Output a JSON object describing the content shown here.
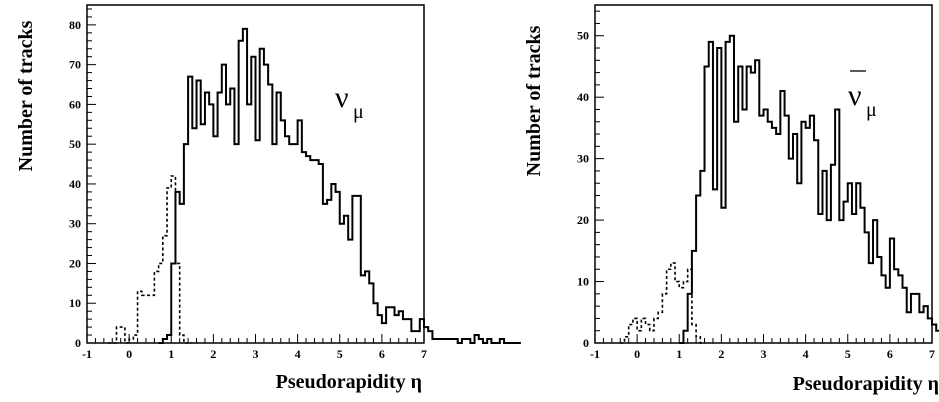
{
  "chart_data": [
    {
      "type": "histogram",
      "panel": "left",
      "annotation": "ν",
      "annotation_sub": "μ",
      "annotation_bar": false,
      "xlabel": "Pseudorapidity η",
      "ylabel": "Number of tracks",
      "xlim": [
        -1,
        7
      ],
      "ylim": [
        0,
        85
      ],
      "xticks": [
        "-1",
        "0",
        "1",
        "2",
        "3",
        "4",
        "5",
        "6",
        "7"
      ],
      "yticks": [
        "0",
        "10",
        "20",
        "30",
        "40",
        "50",
        "60",
        "70",
        "80"
      ],
      "ytick_values": [
        0,
        10,
        20,
        30,
        40,
        50,
        60,
        70,
        80
      ],
      "bin_width": 0.1,
      "series": [
        {
          "style": "solid",
          "x_start": 0.7,
          "values": [
            0,
            1,
            2,
            20,
            38,
            35,
            50,
            67,
            54,
            66,
            55,
            63,
            60,
            52,
            63,
            70,
            60,
            64,
            50,
            76,
            79,
            60,
            72,
            51,
            74,
            70,
            65,
            50,
            63,
            56,
            52,
            50,
            50,
            56,
            48,
            47,
            46,
            46,
            45,
            35,
            36,
            40,
            38,
            30,
            32,
            26,
            37,
            37,
            17,
            18,
            15,
            10,
            7,
            5,
            9,
            9,
            7,
            8,
            6,
            6,
            3,
            3,
            6,
            4,
            3,
            1,
            1,
            1,
            1,
            1,
            1,
            0,
            1,
            1,
            0,
            2,
            1,
            0,
            1,
            0,
            0,
            1,
            0,
            0,
            0,
            0
          ]
        },
        {
          "style": "dashed",
          "x_start": -0.5,
          "values": [
            0,
            0,
            4,
            4,
            0,
            1,
            2,
            13,
            12,
            12,
            12,
            18,
            20,
            27,
            39,
            42,
            20,
            2,
            0,
            0
          ]
        }
      ]
    },
    {
      "type": "histogram",
      "panel": "right",
      "annotation": "ν",
      "annotation_sub": "μ",
      "annotation_bar": true,
      "xlabel": "Pseudorapidity η",
      "ylabel": "Number of tracks",
      "xlim": [
        -1,
        7
      ],
      "ylim": [
        0,
        55
      ],
      "xticks": [
        "-1",
        "0",
        "1",
        "2",
        "3",
        "4",
        "5",
        "6",
        "7"
      ],
      "yticks": [
        "0",
        "10",
        "20",
        "30",
        "40",
        "50"
      ],
      "ytick_values": [
        0,
        10,
        20,
        30,
        40,
        50
      ],
      "bin_width": 0.1,
      "series": [
        {
          "style": "solid",
          "x_start": 1.0,
          "values": [
            0,
            2,
            8,
            15,
            24,
            28,
            45,
            49,
            25,
            48,
            22,
            49,
            50,
            36,
            45,
            38,
            45,
            44,
            46,
            37,
            38,
            36,
            35,
            34,
            41,
            37,
            30,
            34,
            26,
            36,
            35,
            37,
            33,
            21,
            28,
            20,
            29,
            38,
            20,
            23,
            26,
            21,
            26,
            22,
            18,
            13,
            20,
            14,
            11,
            9,
            17,
            12,
            11,
            9,
            5,
            8,
            8,
            5,
            6,
            4,
            3,
            2,
            6,
            3,
            3,
            2,
            1,
            3,
            0,
            4,
            1,
            0,
            2,
            0,
            0,
            1,
            0,
            0,
            0,
            2,
            1,
            1,
            1,
            0,
            0,
            0,
            0,
            0,
            1,
            0
          ]
        },
        {
          "style": "dashed",
          "x_start": -0.4,
          "values": [
            0,
            1,
            3,
            4,
            2,
            4,
            3,
            2,
            4,
            5,
            8,
            12,
            13,
            10,
            9,
            10,
            12,
            3,
            1,
            0
          ]
        }
      ]
    }
  ]
}
